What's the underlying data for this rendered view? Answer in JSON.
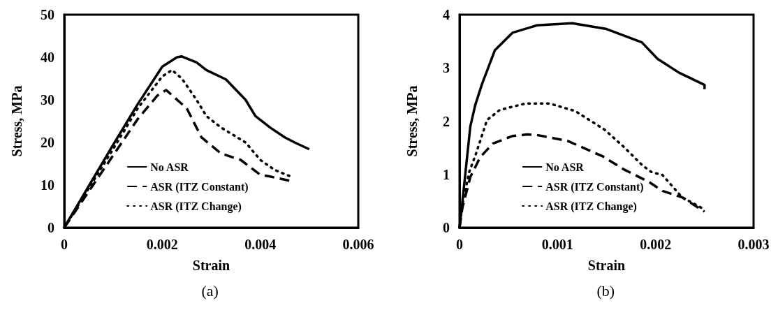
{
  "chart_data": [
    {
      "type": "line",
      "xlabel": "Strain",
      "ylabel": "Stress, MPa",
      "annotations": [
        "(a)"
      ],
      "xlim": [
        0,
        0.006
      ],
      "xticks": [
        0,
        0.002,
        0.004,
        0.006
      ],
      "ylim": [
        0,
        50
      ],
      "yticks": [
        0,
        10,
        20,
        30,
        40,
        50
      ],
      "grid": false,
      "legend": "bottom left",
      "marker": "none",
      "series": [
        {
          "name": "No ASR",
          "color": "#000000",
          "line_style": "solid",
          "x": [
            0,
            0.001,
            0.0015,
            0.002,
            0.0023,
            0.0024,
            0.0027,
            0.0029,
            0.0033,
            0.0037,
            0.0039,
            0.0042,
            0.0045,
            0.0047,
            0.005
          ],
          "values": [
            0,
            19.5,
            29,
            37.8,
            40,
            40.2,
            38.8,
            37,
            34.8,
            30,
            26.2,
            23.5,
            21.2,
            20,
            18.4
          ]
        },
        {
          "name": "ASR (ITZ Constant)",
          "color": "#000000",
          "line_style": "dashed",
          "x": [
            0,
            0.001,
            0.0015,
            0.0019,
            0.00208,
            0.0025,
            0.0028,
            0.0032,
            0.0036,
            0.004,
            0.0042,
            0.0046
          ],
          "values": [
            0,
            17,
            25.5,
            31,
            32.3,
            28,
            21.2,
            17.4,
            15.9,
            12.4,
            12,
            11
          ]
        },
        {
          "name": "ASR (ITZ Change)",
          "color": "#000000",
          "line_style": "dotted",
          "x": [
            0,
            0.001,
            0.0015,
            0.002,
            0.0022,
            0.0024,
            0.0027,
            0.0029,
            0.0032,
            0.0037,
            0.004,
            0.0043,
            0.0046
          ],
          "values": [
            0,
            18.5,
            28,
            35.5,
            37,
            35,
            30,
            26.2,
            23.5,
            20,
            15.9,
            13.5,
            12.1
          ]
        }
      ]
    },
    {
      "type": "line",
      "xlabel": "Strain",
      "ylabel": "Stress, MPa",
      "annotations": [
        "(b)"
      ],
      "xlim": [
        0,
        0.003
      ],
      "xticks": [
        0,
        0.001,
        0.002,
        0.003
      ],
      "ylim": [
        0,
        4
      ],
      "yticks": [
        0,
        1,
        2,
        3,
        4
      ],
      "grid": false,
      "legend": "bottom left",
      "marker": "none",
      "series": [
        {
          "name": "No ASR",
          "color": "#000000",
          "line_style": "solid",
          "x": [
            0,
            3e-05,
            7e-05,
            0.00011,
            0.00016,
            0.00023,
            0.00036,
            0.00054,
            0.00079,
            0.00115,
            0.0015,
            0.00186,
            0.00202,
            0.00224,
            0.0025,
            0.0025
          ],
          "values": [
            0,
            0.5,
            1.2,
            1.9,
            2.3,
            2.7,
            3.33,
            3.66,
            3.8,
            3.84,
            3.73,
            3.48,
            3.17,
            2.91,
            2.68,
            2.6
          ]
        },
        {
          "name": "ASR (ITZ Constant)",
          "color": "#000000",
          "line_style": "dashed",
          "x": [
            0,
            3e-05,
            0.00011,
            0.00021,
            0.00034,
            0.00054,
            0.00069,
            0.00079,
            0.0011,
            0.00146,
            0.00168,
            0.00194,
            0.00207,
            0.00227,
            0.0025
          ],
          "values": [
            0,
            0.38,
            0.95,
            1.32,
            1.58,
            1.72,
            1.75,
            1.74,
            1.63,
            1.34,
            1.09,
            0.85,
            0.69,
            0.57,
            0.3
          ]
        },
        {
          "name": "ASR (ITZ Change)",
          "color": "#000000",
          "line_style": "dotted",
          "x": [
            0,
            3e-05,
            0.0001,
            0.00017,
            0.00028,
            0.00041,
            0.00067,
            0.00092,
            0.00118,
            0.00148,
            0.00168,
            0.00186,
            0.00196,
            0.00207,
            0.00227,
            0.0025
          ],
          "values": [
            0,
            0.45,
            1.05,
            1.4,
            2.02,
            2.21,
            2.33,
            2.33,
            2.19,
            1.84,
            1.51,
            1.18,
            1.04,
            0.99,
            0.57,
            0.34
          ]
        }
      ]
    }
  ]
}
